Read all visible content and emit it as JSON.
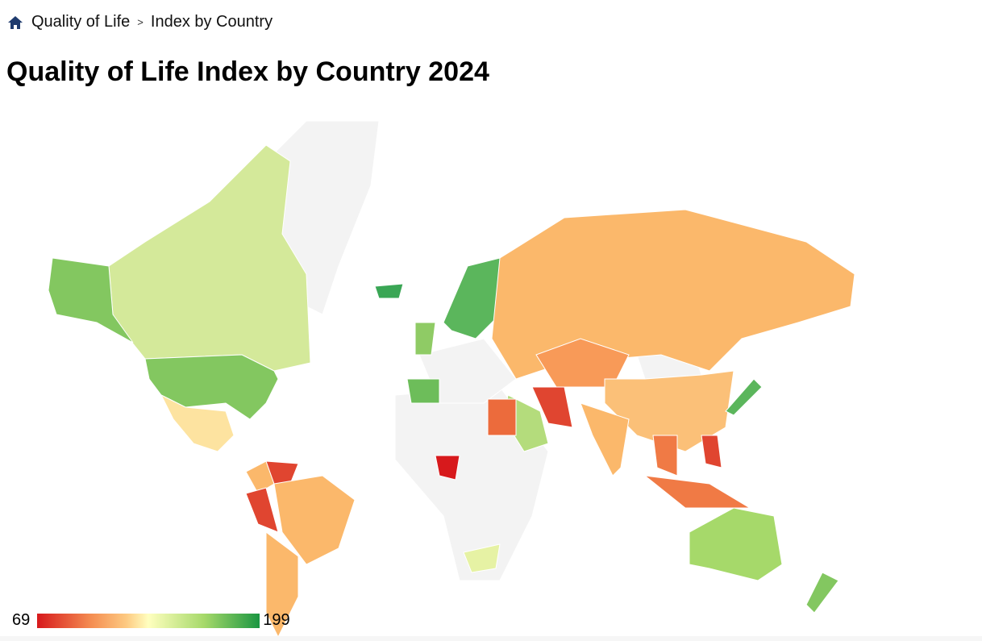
{
  "breadcrumb": {
    "home_icon": "home-icon",
    "items": [
      "Quality of Life",
      "Index by Country"
    ],
    "separator": ">"
  },
  "title": "Quality of Life Index by Country 2024",
  "legend": {
    "min": "69",
    "max": "199",
    "colors": [
      "#d7191c",
      "#fdc981",
      "#ffffbf",
      "#a6d96a",
      "#1a9641"
    ]
  },
  "map": {
    "no_data_color": "#f3f3f3",
    "countries": [
      {
        "name": "Canada",
        "color": "#d4e99a"
      },
      {
        "name": "United States",
        "color": "#83c760"
      },
      {
        "name": "Mexico",
        "color": "#fde3a0"
      },
      {
        "name": "Colombia",
        "color": "#fbb86b"
      },
      {
        "name": "Venezuela",
        "color": "#e04530"
      },
      {
        "name": "Peru",
        "color": "#e04530"
      },
      {
        "name": "Brazil",
        "color": "#fbb86b"
      },
      {
        "name": "Argentina",
        "color": "#fbb86b"
      },
      {
        "name": "Iceland",
        "color": "#3aa655"
      },
      {
        "name": "Norway",
        "color": "#5bb65c"
      },
      {
        "name": "Spain",
        "color": "#6dbd5a"
      },
      {
        "name": "United Kingdom",
        "color": "#8fcb65"
      },
      {
        "name": "Russia",
        "color": "#fbb86b"
      },
      {
        "name": "Kazakhstan",
        "color": "#f89a58"
      },
      {
        "name": "China",
        "color": "#fbc078"
      },
      {
        "name": "India",
        "color": "#fbb86b"
      },
      {
        "name": "Iran",
        "color": "#e04530"
      },
      {
        "name": "Saudi Arabia",
        "color": "#b4dc7c"
      },
      {
        "name": "Egypt",
        "color": "#ec6b3c"
      },
      {
        "name": "Nigeria",
        "color": "#d7191c"
      },
      {
        "name": "South Africa",
        "color": "#e6f2a4"
      },
      {
        "name": "Australia",
        "color": "#a6d96a"
      },
      {
        "name": "New Zealand",
        "color": "#83c760"
      },
      {
        "name": "Japan",
        "color": "#5bb65c"
      },
      {
        "name": "Indonesia",
        "color": "#f07a45"
      },
      {
        "name": "Philippines",
        "color": "#e04530"
      },
      {
        "name": "Vietnam",
        "color": "#f07a45"
      }
    ]
  }
}
